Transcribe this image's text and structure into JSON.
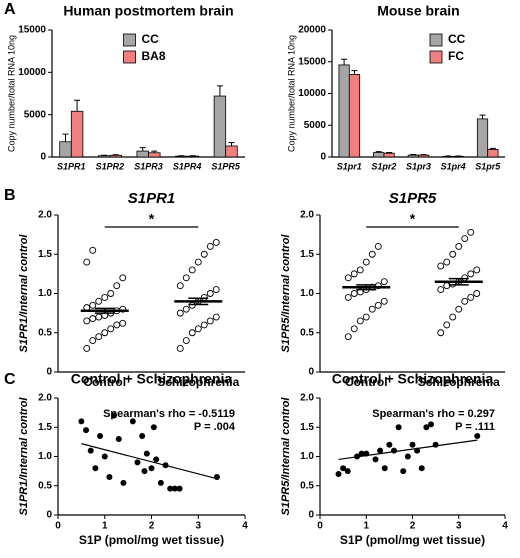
{
  "panel_labels": [
    "A",
    "B",
    "C"
  ],
  "chart_data": [
    {
      "type": "bar",
      "title": "Human postmortem brain",
      "ylabel": "Copy number/total RNA 10ng",
      "categories": [
        "S1PR1",
        "S1PR2",
        "S1PR3",
        "S1PR4",
        "S1PR5"
      ],
      "series": [
        {
          "name": "CC",
          "color": "#a6a6a6",
          "values": [
            1800,
            150,
            700,
            100,
            7200
          ],
          "errors": [
            900,
            50,
            400,
            50,
            1200
          ]
        },
        {
          "name": "BA8",
          "color": "#f08080",
          "values": [
            5400,
            200,
            500,
            100,
            1300
          ],
          "errors": [
            1300,
            60,
            200,
            50,
            400
          ]
        }
      ],
      "ylim": [
        0,
        15000
      ],
      "yticks": [
        0,
        5000,
        10000,
        15000
      ],
      "legend": "top-center"
    },
    {
      "type": "bar",
      "title": "Mouse brain",
      "ylabel": "Copy number/total RNA 10ng",
      "categories": [
        "S1pr1",
        "S1pr2",
        "S1pr3",
        "S1pr4",
        "S1pr5"
      ],
      "series": [
        {
          "name": "CC",
          "color": "#a6a6a6",
          "values": [
            14500,
            700,
            300,
            100,
            6000
          ],
          "errors": [
            900,
            150,
            100,
            50,
            600
          ]
        },
        {
          "name": "FC",
          "color": "#f08080",
          "values": [
            13000,
            600,
            300,
            100,
            1200
          ],
          "errors": [
            600,
            100,
            80,
            50,
            150
          ]
        }
      ],
      "ylim": [
        0,
        20000
      ],
      "yticks": [
        0,
        5000,
        10000,
        15000,
        20000
      ],
      "legend": "top-right"
    },
    {
      "type": "dot",
      "title": "S1PR1",
      "ylabel": "S1PR1/Internal control",
      "categories": [
        "Control",
        "Schizophrenia"
      ],
      "points": [
        [
          0.3,
          0.4,
          0.45,
          0.5,
          0.55,
          0.6,
          0.62,
          0.65,
          0.68,
          0.7,
          0.72,
          0.75,
          0.78,
          0.8,
          0.82,
          0.85,
          0.9,
          0.95,
          1.0,
          1.1,
          1.2,
          1.4,
          1.55
        ],
        [
          0.3,
          0.4,
          0.5,
          0.55,
          0.6,
          0.65,
          0.7,
          0.75,
          0.8,
          0.85,
          0.9,
          0.95,
          1.0,
          1.05,
          1.1,
          1.2,
          1.3,
          1.4,
          1.5,
          1.6,
          1.65
        ]
      ],
      "values": [
        0.78,
        0.9
      ],
      "errors": [
        0.03,
        0.04
      ],
      "annotations": [
        "*"
      ],
      "ylim": [
        0,
        2
      ],
      "yticks": [
        0,
        0.5,
        {
          "value": 1,
          "label": "1.0"
        },
        1.5,
        {
          "value": 2,
          "label": "2.0"
        }
      ]
    },
    {
      "type": "dot",
      "title": "S1PR5",
      "ylabel": "S1PR5/Internal control",
      "categories": [
        "Control",
        "Schizophrenia"
      ],
      "points": [
        [
          0.45,
          0.55,
          0.65,
          0.7,
          0.8,
          0.85,
          0.9,
          0.95,
          1.0,
          1.02,
          1.05,
          1.08,
          1.1,
          1.15,
          1.2,
          1.25,
          1.3,
          1.4,
          1.5,
          1.6
        ],
        [
          0.5,
          0.6,
          0.7,
          0.8,
          0.9,
          0.95,
          1.0,
          1.05,
          1.1,
          1.12,
          1.15,
          1.2,
          1.25,
          1.3,
          1.35,
          1.4,
          1.5,
          1.6,
          1.7,
          1.78
        ]
      ],
      "values": [
        1.08,
        1.15
      ],
      "errors": [
        0.03,
        0.04
      ],
      "annotations": [
        "*"
      ],
      "ylim": [
        0,
        2
      ],
      "yticks": [
        0,
        0.5,
        {
          "value": 1,
          "label": "1.0"
        },
        1.5,
        {
          "value": 2,
          "label": "2.0"
        }
      ]
    },
    {
      "type": "scatter",
      "title": "Control + Schizophrenia",
      "xlabel": "S1P (pmol/mg wet tissue)",
      "ylabel": "S1PR1/Internal control",
      "x": [
        0.5,
        0.6,
        0.7,
        0.8,
        0.9,
        1.0,
        1.1,
        1.2,
        1.3,
        1.4,
        1.6,
        1.7,
        1.8,
        1.85,
        1.9,
        2.0,
        2.05,
        2.1,
        2.2,
        2.3,
        2.4,
        2.5,
        2.6,
        3.4
      ],
      "values": [
        1.6,
        1.45,
        1.1,
        0.8,
        1.35,
        1.0,
        0.65,
        1.7,
        1.3,
        0.55,
        1.6,
        0.9,
        1.35,
        0.75,
        1.05,
        0.8,
        1.5,
        0.95,
        0.55,
        0.85,
        0.45,
        0.45,
        0.45,
        0.65
      ],
      "fit": {
        "x": [
          0.5,
          3.4
        ],
        "y": [
          1.22,
          0.62
        ]
      },
      "annotations": [
        "Spearman's rho = -0.5119",
        "P = .004"
      ],
      "xlim": [
        0,
        4
      ],
      "xticks": [
        0,
        1,
        2,
        3,
        4
      ],
      "ylim": [
        0,
        2
      ],
      "yticks": [
        0,
        0.5,
        {
          "value": 1,
          "label": "1.0"
        },
        1.5,
        {
          "value": 2,
          "label": "2.0"
        }
      ]
    },
    {
      "type": "scatter",
      "title": "Control + Schizophrenia",
      "xlabel": "S1P (pmol/mg wet tissue)",
      "ylabel": "S1PR5/Internal control",
      "x": [
        0.4,
        0.5,
        0.6,
        0.8,
        0.9,
        1.0,
        1.2,
        1.3,
        1.4,
        1.5,
        1.6,
        1.7,
        1.8,
        1.9,
        2.0,
        2.1,
        2.2,
        2.3,
        2.4,
        2.5,
        3.4
      ],
      "values": [
        0.7,
        0.8,
        0.75,
        1.0,
        1.05,
        1.05,
        0.95,
        1.1,
        0.8,
        1.2,
        1.1,
        1.5,
        0.75,
        1.0,
        1.2,
        1.1,
        0.8,
        1.5,
        1.55,
        1.2,
        1.35
      ],
      "fit": {
        "x": [
          0.4,
          3.4
        ],
        "y": [
          0.95,
          1.28
        ]
      },
      "annotations": [
        "Spearman's rho = 0.297",
        "P = .111"
      ],
      "xlim": [
        0,
        4
      ],
      "xticks": [
        0,
        1,
        2,
        3,
        4
      ],
      "ylim": [
        0,
        2
      ],
      "yticks": [
        0,
        0.5,
        {
          "value": 1,
          "label": "1.0"
        },
        1.5,
        {
          "value": 2,
          "label": "2.0"
        }
      ]
    }
  ]
}
